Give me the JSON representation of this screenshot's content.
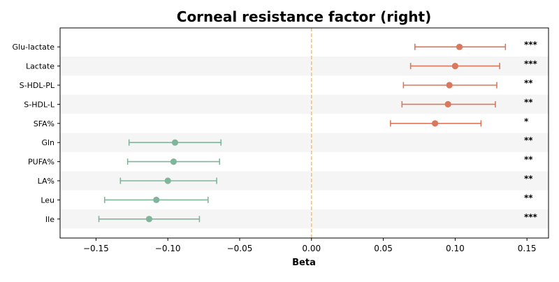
{
  "chart_data": {
    "type": "forest",
    "title": "Corneal resistance factor (right)",
    "xlabel": "Beta",
    "xlim": [
      -0.175,
      0.165
    ],
    "xticks": [
      -0.15,
      -0.1,
      -0.05,
      0.0,
      0.05,
      0.1,
      0.15
    ],
    "xtick_labels": [
      "−0.15",
      "−0.10",
      "−0.05",
      "0.00",
      "0.05",
      "0.10",
      "0.15"
    ],
    "reference_line": 0.0,
    "colors": {
      "positive": "#d9785c",
      "negative": "#80b59b",
      "reference": "#f2c27a",
      "band": "#f5f5f5"
    },
    "rows": [
      {
        "label": "Glu-lactate",
        "beta": 0.103,
        "ci_low": 0.072,
        "ci_high": 0.135,
        "sig": "***"
      },
      {
        "label": "Lactate",
        "beta": 0.1,
        "ci_low": 0.069,
        "ci_high": 0.131,
        "sig": "***"
      },
      {
        "label": "S-HDL-PL",
        "beta": 0.096,
        "ci_low": 0.064,
        "ci_high": 0.129,
        "sig": "**"
      },
      {
        "label": "S-HDL-L",
        "beta": 0.095,
        "ci_low": 0.063,
        "ci_high": 0.128,
        "sig": "**"
      },
      {
        "label": "SFA%",
        "beta": 0.086,
        "ci_low": 0.055,
        "ci_high": 0.118,
        "sig": "*"
      },
      {
        "label": "Gln",
        "beta": -0.095,
        "ci_low": -0.127,
        "ci_high": -0.063,
        "sig": "**"
      },
      {
        "label": "PUFA%",
        "beta": -0.096,
        "ci_low": -0.128,
        "ci_high": -0.064,
        "sig": "**"
      },
      {
        "label": "LA%",
        "beta": -0.1,
        "ci_low": -0.133,
        "ci_high": -0.066,
        "sig": "**"
      },
      {
        "label": "Leu",
        "beta": -0.108,
        "ci_low": -0.144,
        "ci_high": -0.072,
        "sig": "**"
      },
      {
        "label": "Ile",
        "beta": -0.113,
        "ci_low": -0.148,
        "ci_high": -0.078,
        "sig": "***"
      }
    ]
  }
}
